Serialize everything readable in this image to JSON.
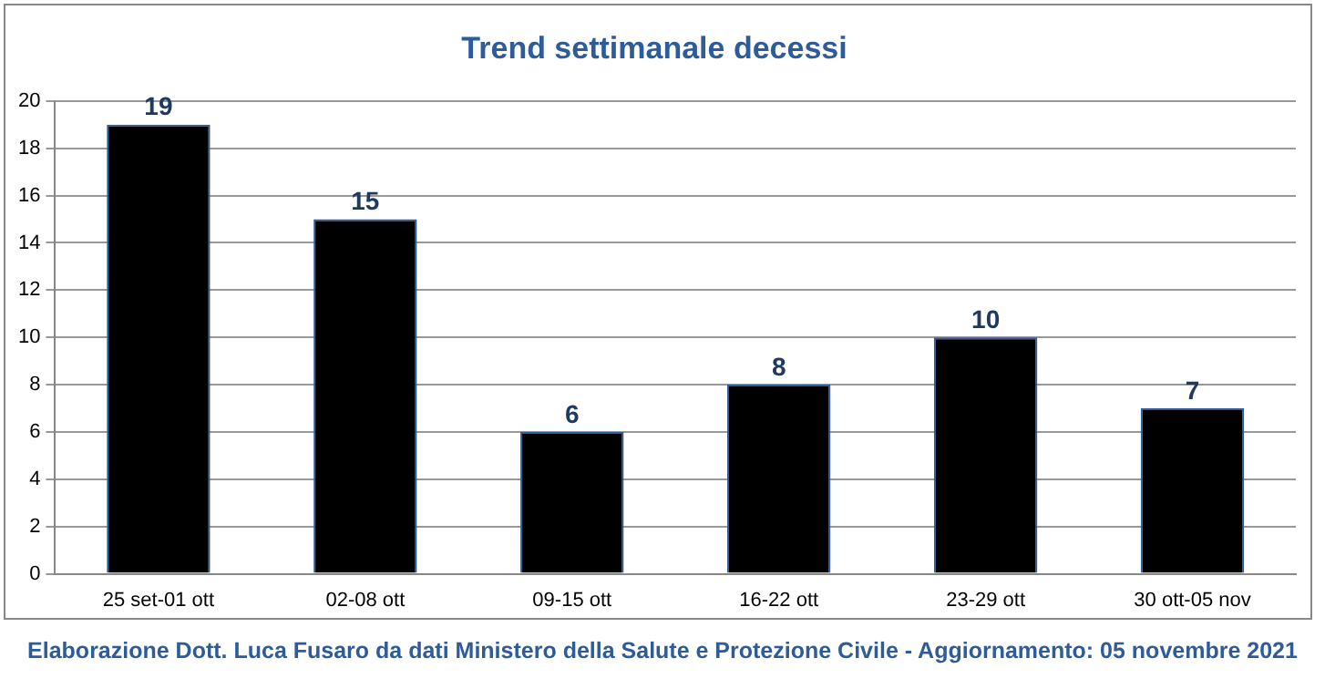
{
  "chart_data": {
    "type": "bar",
    "title": "Trend settimanale decessi",
    "categories": [
      "25 set-01 ott",
      "02-08 ott",
      "09-15 ott",
      "16-22 ott",
      "23-29 ott",
      "30 ott-05 nov"
    ],
    "values": [
      19,
      15,
      6,
      8,
      10,
      7
    ],
    "color": "#000000",
    "ylim": [
      0,
      20
    ],
    "yticks": [
      0,
      2,
      4,
      6,
      8,
      10,
      12,
      14,
      16,
      18,
      20
    ],
    "grid": "y",
    "data_labels": true,
    "annotations": [
      "Elaborazione Dott. Luca Fusaro da dati Ministero della Salute e Protezione Civile - Aggiornamento: 05 novembre 2021"
    ]
  }
}
